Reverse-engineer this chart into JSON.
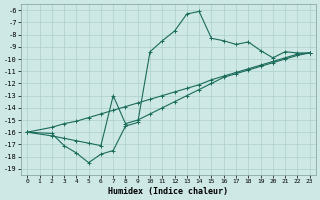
{
  "xlabel": "Humidex (Indice chaleur)",
  "ylabel": "",
  "xlim": [
    -0.5,
    23.5
  ],
  "ylim": [
    -19.5,
    -5.5
  ],
  "background_color": "#cde8e5",
  "grid_color": "#aed0cc",
  "line_color": "#1a6b5a",
  "xticks": [
    0,
    1,
    2,
    3,
    4,
    5,
    6,
    7,
    8,
    9,
    10,
    11,
    12,
    13,
    14,
    15,
    16,
    17,
    18,
    19,
    20,
    21,
    22,
    23
  ],
  "yticks": [
    -6,
    -7,
    -8,
    -9,
    -10,
    -11,
    -12,
    -13,
    -14,
    -15,
    -16,
    -17,
    -18,
    -19
  ],
  "line1_x": [
    0,
    2,
    3,
    4,
    5,
    6,
    7,
    8,
    9,
    10,
    11,
    12,
    13,
    14,
    15,
    16,
    17,
    18,
    19,
    20,
    21,
    22,
    23
  ],
  "line1_y": [
    -16.0,
    -16.1,
    -17.1,
    -17.7,
    -18.5,
    -17.8,
    -17.5,
    -15.5,
    -15.2,
    -9.4,
    -8.5,
    -7.7,
    -6.3,
    -6.1,
    -8.3,
    -8.5,
    -8.8,
    -8.6,
    -9.3,
    -9.9,
    -9.4,
    -9.5,
    -9.5
  ],
  "line2_x": [
    0,
    2,
    3,
    4,
    5,
    6,
    7,
    8,
    9,
    10,
    11,
    12,
    13,
    14,
    15,
    16,
    17,
    18,
    19,
    20,
    21,
    22,
    23
  ],
  "line2_y": [
    -16.0,
    -15.6,
    -15.3,
    -15.1,
    -14.8,
    -14.5,
    -14.2,
    -13.9,
    -13.6,
    -13.3,
    -13.0,
    -12.7,
    -12.4,
    -12.1,
    -11.7,
    -11.4,
    -11.1,
    -10.8,
    -10.5,
    -10.2,
    -9.9,
    -9.6,
    -9.5
  ],
  "line3_x": [
    0,
    2,
    3,
    4,
    5,
    6,
    7,
    8,
    9,
    10,
    11,
    12,
    13,
    14,
    15,
    16,
    17,
    18,
    19,
    20,
    21,
    22,
    23
  ],
  "line3_y": [
    -16.0,
    -16.3,
    -16.5,
    -16.7,
    -16.9,
    -17.1,
    -13.0,
    -15.3,
    -15.0,
    -14.5,
    -14.0,
    -13.5,
    -13.0,
    -12.5,
    -12.0,
    -11.5,
    -11.2,
    -10.9,
    -10.6,
    -10.3,
    -10.0,
    -9.7,
    -9.5
  ]
}
